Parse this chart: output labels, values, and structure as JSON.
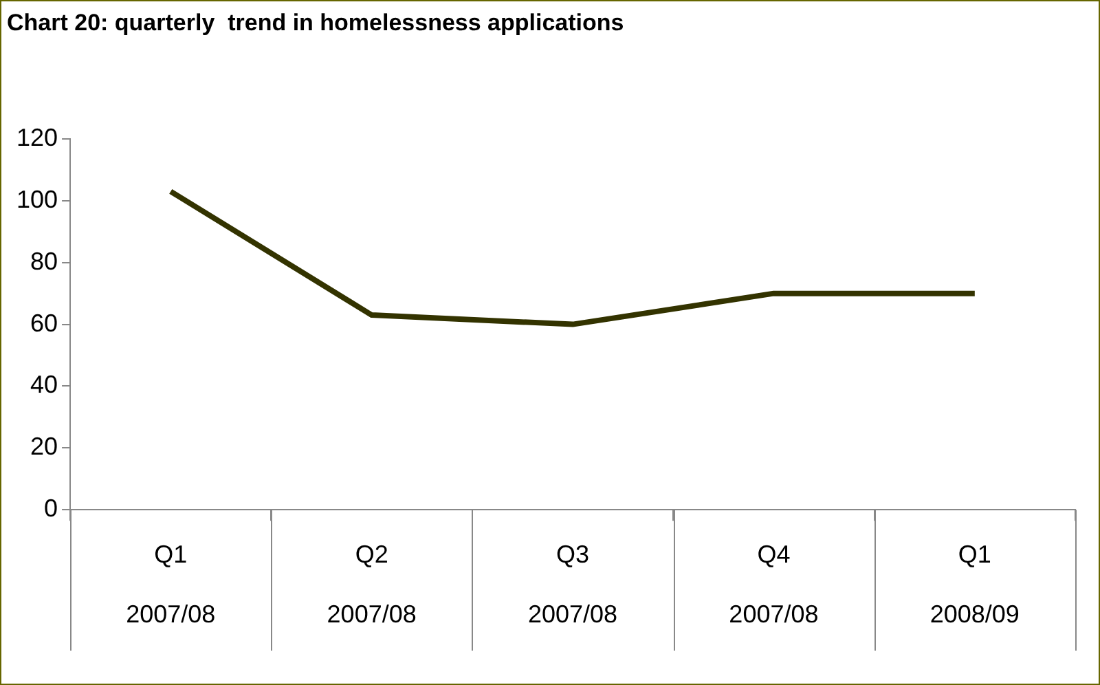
{
  "chart_data": {
    "type": "line",
    "title": "Chart 20: quarterly  trend in homelessness applications",
    "categories": [
      "Q1\n2007/08",
      "Q2\n2007/08",
      "Q3\n2007/08",
      "Q4\n2007/08",
      "Q1\n2008/09"
    ],
    "series": [
      {
        "color": "#333300",
        "values": [
          103,
          63,
          60,
          70,
          70
        ]
      }
    ],
    "ylim": [
      0,
      120
    ],
    "yticks": [
      0,
      20,
      40,
      60,
      80,
      100,
      120
    ],
    "grid": false,
    "legend": false,
    "marker": "none",
    "line_style": "solid"
  }
}
